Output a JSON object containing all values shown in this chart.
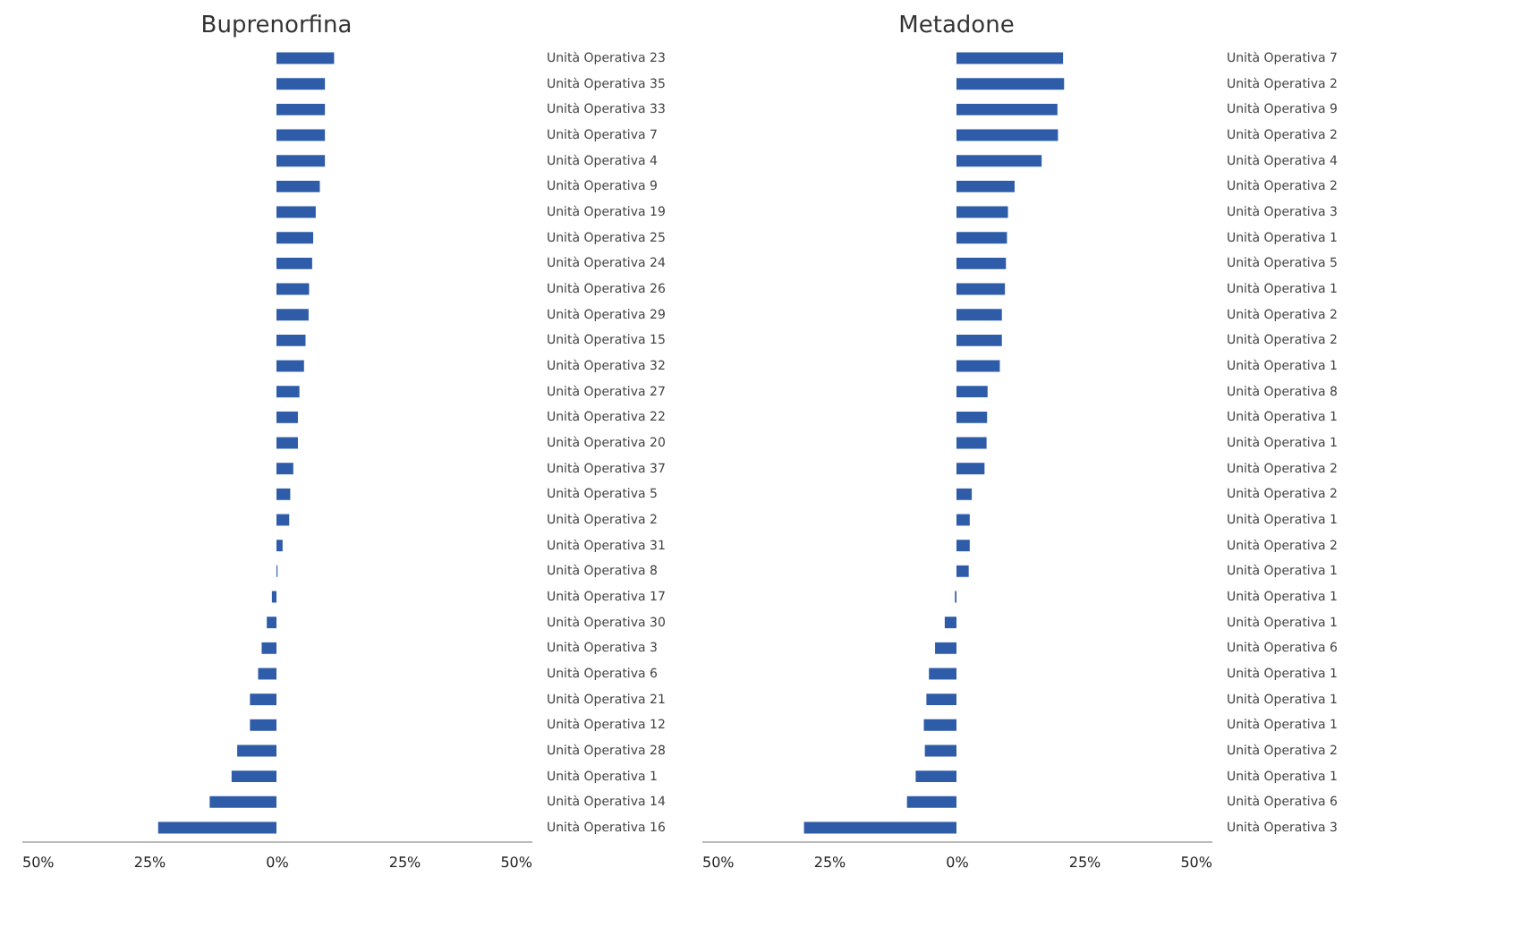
{
  "chart_data": [
    {
      "type": "bar",
      "orientation": "horizontal",
      "title": "Buprenorfina",
      "color": "#2e5ca8",
      "grid": false,
      "categories": [
        "Unità Operativa 23",
        "Unità Operativa 35",
        "Unità Operativa 33",
        "Unità Operativa 7",
        "Unità Operativa 4",
        "Unità Operativa 9",
        "Unità Operativa 19",
        "Unità Operativa 25",
        "Unità Operativa 24",
        "Unità Operativa 26",
        "Unità Operativa 29",
        "Unità Operativa 15",
        "Unità Operativa 32",
        "Unità Operativa 27",
        "Unità Operativa 22",
        "Unità Operativa 20",
        "Unità Operativa 37",
        "Unità Operativa 5",
        "Unità Operativa 2",
        "Unità Operativa 31",
        "Unità Operativa 8",
        "Unità Operativa 17",
        "Unità Operativa 30",
        "Unità Operativa 3",
        "Unità Operativa 6",
        "Unità Operativa 21",
        "Unità Operativa 12",
        "Unità Operativa 28",
        "Unità Operativa 1",
        "Unità Operativa 14",
        "Unità Operativa 16"
      ],
      "values": [
        11.3,
        9.5,
        9.5,
        9.5,
        9.5,
        8.5,
        7.7,
        7.2,
        7.0,
        6.4,
        6.3,
        5.7,
        5.4,
        4.5,
        4.2,
        4.2,
        3.3,
        2.7,
        2.5,
        1.2,
        0.2,
        -0.9,
        -1.9,
        -2.9,
        -3.6,
        -5.2,
        -5.2,
        -7.7,
        -8.8,
        -13.1,
        -23.2
      ],
      "xlim": [
        -50,
        50
      ],
      "xticks": [
        {
          "value": -50,
          "label": "50%"
        },
        {
          "value": -25,
          "label": "25%"
        },
        {
          "value": 0,
          "label": "0%"
        },
        {
          "value": 25,
          "label": "25%"
        },
        {
          "value": 50,
          "label": "50%"
        }
      ]
    },
    {
      "type": "bar",
      "orientation": "horizontal",
      "title": "Metadone",
      "color": "#2e5ca8",
      "grid": false,
      "categories": [
        "Unità Operativa 7",
        "Unità Operativa 2",
        "Unità Operativa 9",
        "Unità Operativa 2",
        "Unità Operativa 4",
        "Unità Operativa 2",
        "Unità Operativa 3",
        "Unità Operativa 1",
        "Unità Operativa 5",
        "Unità Operativa 1",
        "Unità Operativa 2",
        "Unità Operativa 2",
        "Unità Operativa 1",
        "Unità Operativa 8",
        "Unità Operativa 1",
        "Unità Operativa 1",
        "Unità Operativa 2",
        "Unità Operativa 2",
        "Unità Operativa 1",
        "Unità Operativa 2",
        "Unità Operativa 1",
        "Unità Operativa 1",
        "Unità Operativa 1",
        "Unità Operativa 6",
        "Unità Operativa 1",
        "Unità Operativa 1",
        "Unità Operativa 1",
        "Unità Operativa 2",
        "Unità Operativa 1",
        "Unità Operativa 6",
        "Unità Operativa 3"
      ],
      "values": [
        20.9,
        21.1,
        19.8,
        19.9,
        16.7,
        11.4,
        10.1,
        9.9,
        9.7,
        9.5,
        8.9,
        8.9,
        8.5,
        6.1,
        6.0,
        5.9,
        5.5,
        3.0,
        2.6,
        2.6,
        2.4,
        -0.3,
        -2.3,
        -4.2,
        -5.4,
        -5.9,
        -6.4,
        -6.2,
        -8.0,
        -9.7,
        -29.9
      ],
      "xlim": [
        -50,
        50
      ],
      "xticks": [
        {
          "value": -50,
          "label": "50%"
        },
        {
          "value": -25,
          "label": "25%"
        },
        {
          "value": 0,
          "label": "0%"
        },
        {
          "value": 25,
          "label": "25%"
        },
        {
          "value": 50,
          "label": "50%"
        }
      ]
    }
  ]
}
